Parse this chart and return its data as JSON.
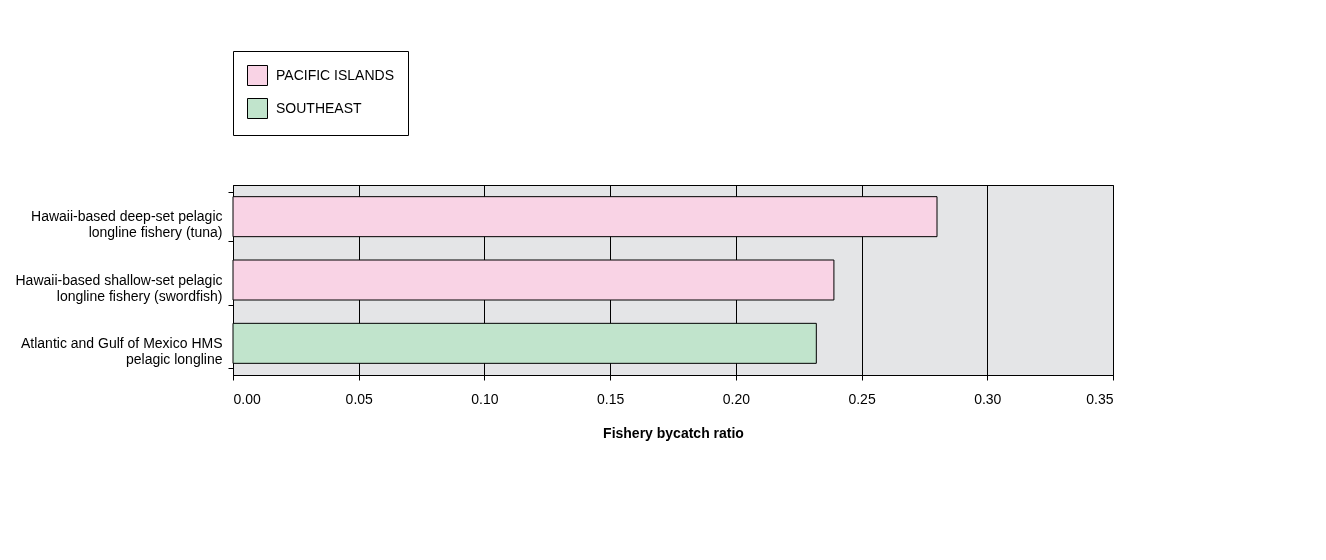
{
  "chart_data": {
    "type": "bar",
    "orientation": "horizontal",
    "xlabel": "Fishery bycatch ratio",
    "categories": [
      "Hawaii-based deep-set pelagic longline fishery (tuna)",
      "Hawaii-based shallow-set pelagic longline fishery (swordfish)",
      "Atlantic and Gulf of Mexico HMS pelagic longline"
    ],
    "series": [
      {
        "name": "PACIFIC ISLANDS",
        "color": "#f9d3e5",
        "values": [
          0.28,
          0.239,
          null
        ]
      },
      {
        "name": "SOUTHEAST",
        "color": "#c1e4cc",
        "values": [
          null,
          null,
          0.232
        ]
      }
    ],
    "xlim": [
      0,
      0.35
    ],
    "xticks": [
      {
        "value": 0,
        "label": "0.00"
      },
      {
        "value": 0.05,
        "label": "0.05"
      },
      {
        "value": 0.1,
        "label": "0.10"
      },
      {
        "value": 0.15,
        "label": "0.15"
      },
      {
        "value": 0.2,
        "label": "0.20"
      },
      {
        "value": 0.25,
        "label": "0.25"
      },
      {
        "value": 0.3,
        "label": "0.30"
      },
      {
        "value": 0.35,
        "label": "0.35"
      }
    ],
    "grid": "x",
    "legend": "top"
  }
}
